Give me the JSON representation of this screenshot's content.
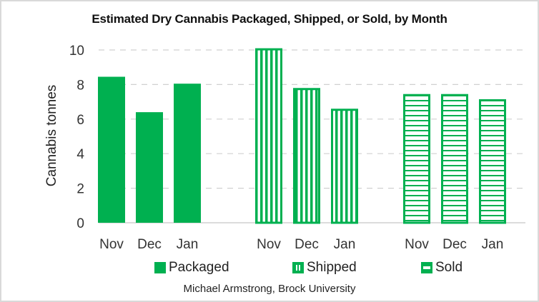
{
  "chart_data": {
    "type": "bar",
    "title": "Estimated Dry Cannabis Packaged, Shipped, or Sold, by Month",
    "xlabel": "",
    "ylabel": "Cannabis tonnes",
    "ylim": [
      0,
      10
    ],
    "yticks": [
      0,
      2,
      4,
      6,
      8,
      10
    ],
    "grid": true,
    "legend_position": "bottom",
    "color": "#00B050",
    "groups": [
      {
        "name": "Packaged",
        "pattern": "solid",
        "categories": [
          "Nov",
          "Dec",
          "Jan"
        ],
        "values": [
          8.45,
          6.4,
          8.05
        ]
      },
      {
        "name": "Shipped",
        "pattern": "vertical-stripes",
        "categories": [
          "Nov",
          "Dec",
          "Jan"
        ],
        "values": [
          10.1,
          7.8,
          6.6
        ]
      },
      {
        "name": "Sold",
        "pattern": "horizontal-stripes",
        "categories": [
          "Nov",
          "Dec",
          "Jan"
        ],
        "values": [
          7.45,
          7.45,
          7.15
        ]
      }
    ],
    "credit": "Michael Armstrong, Brock University"
  }
}
